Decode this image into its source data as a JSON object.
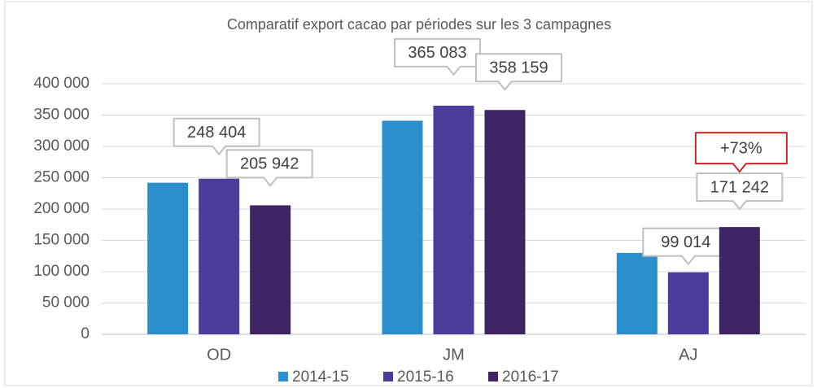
{
  "chart_data": {
    "type": "bar",
    "title": "Comparatif export cacao par périodes sur les 3 campagnes",
    "categories": [
      "OD",
      "JM",
      "AJ"
    ],
    "series": [
      {
        "name": "2014-15",
        "color": "#2b8fcc",
        "values": [
          242000,
          341000,
          130000
        ]
      },
      {
        "name": "2015-16",
        "color": "#4b3c9b",
        "values": [
          248404,
          365083,
          99014
        ],
        "value_labels": [
          "248 404",
          "365 083",
          "99 014"
        ]
      },
      {
        "name": "2016-17",
        "color": "#3d2462",
        "values": [
          205942,
          358159,
          171242
        ],
        "value_labels": [
          "205 942",
          "358 159",
          "171 242"
        ]
      }
    ],
    "annotation": "+73%",
    "ylim": [
      0,
      400000
    ],
    "yticks": [
      0,
      {
        "value": 50000,
        "label": "50 000"
      },
      {
        "value": 100000,
        "label": "100 000"
      },
      {
        "value": 150000,
        "label": "150 000"
      },
      {
        "value": 200000,
        "label": "200 000"
      },
      {
        "value": 250000,
        "label": "250 000"
      },
      {
        "value": 300000,
        "label": "300 000"
      },
      {
        "value": 350000,
        "label": "350 000"
      },
      {
        "value": 400000,
        "label": "400 000"
      }
    ],
    "grid": true,
    "legend": "bottom"
  }
}
